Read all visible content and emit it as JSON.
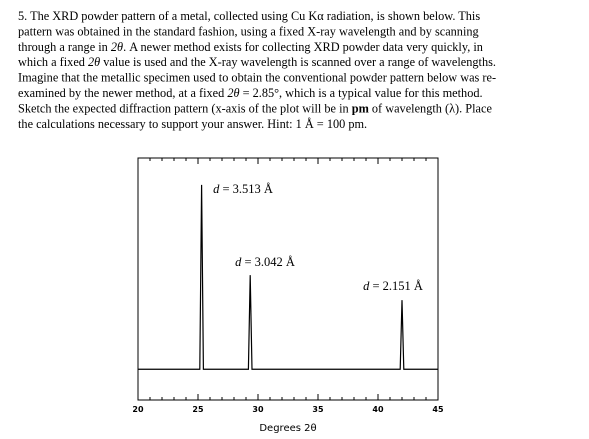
{
  "question": {
    "lines": [
      [
        "5. The XRD powder pattern of a metal, collected using Cu Kα radiation, is shown below. This"
      ],
      [
        "pattern was obtained in the standard fashion, using a fixed X-ray wavelength and by scanning"
      ],
      [
        "through a range in ",
        {
          "i": "2θ"
        },
        ". A newer method exists for collecting XRD powder data very quickly, in"
      ],
      [
        "which a fixed ",
        {
          "i": "2θ"
        },
        " value is used and the X-ray wavelength is scanned over a range of wavelengths."
      ],
      [
        "Imagine that the metallic specimen used to obtain the conventional powder pattern below was re-"
      ],
      [
        "examined by the newer method, at a fixed ",
        {
          "i": "2θ"
        },
        " = 2.85°, which is a typical value for this method."
      ],
      [
        "Sketch the expected diffraction pattern (x-axis of the plot will be in ",
        {
          "b": "pm"
        },
        " of wavelength (λ).  Place"
      ],
      [
        "the calculations necessary to support your answer. Hint: 1 Å = 100 pm."
      ]
    ]
  },
  "chart_data": {
    "type": "line",
    "x_label": "Degrees 2θ",
    "xlim": [
      20,
      45
    ],
    "xticks": [
      20,
      25,
      30,
      35,
      40,
      45
    ],
    "minor_tick_step": 1,
    "ylim": [
      -16,
      110
    ],
    "series": [
      {
        "color": "#000000",
        "x": [
          20,
          25.15,
          25.3,
          25.45,
          29.2,
          29.35,
          29.5,
          41.85,
          42.0,
          42.15,
          45
        ],
        "values": [
          0,
          0,
          96,
          0,
          0,
          49,
          0,
          0,
          36,
          0,
          0
        ]
      }
    ],
    "annotations": [
      [
        {
          "i": "d"
        },
        " = 3.513 Å"
      ],
      [
        {
          "i": "d"
        },
        " = 3.042 Å"
      ],
      [
        {
          "i": "d"
        },
        " = 2.151 Å"
      ]
    ]
  }
}
